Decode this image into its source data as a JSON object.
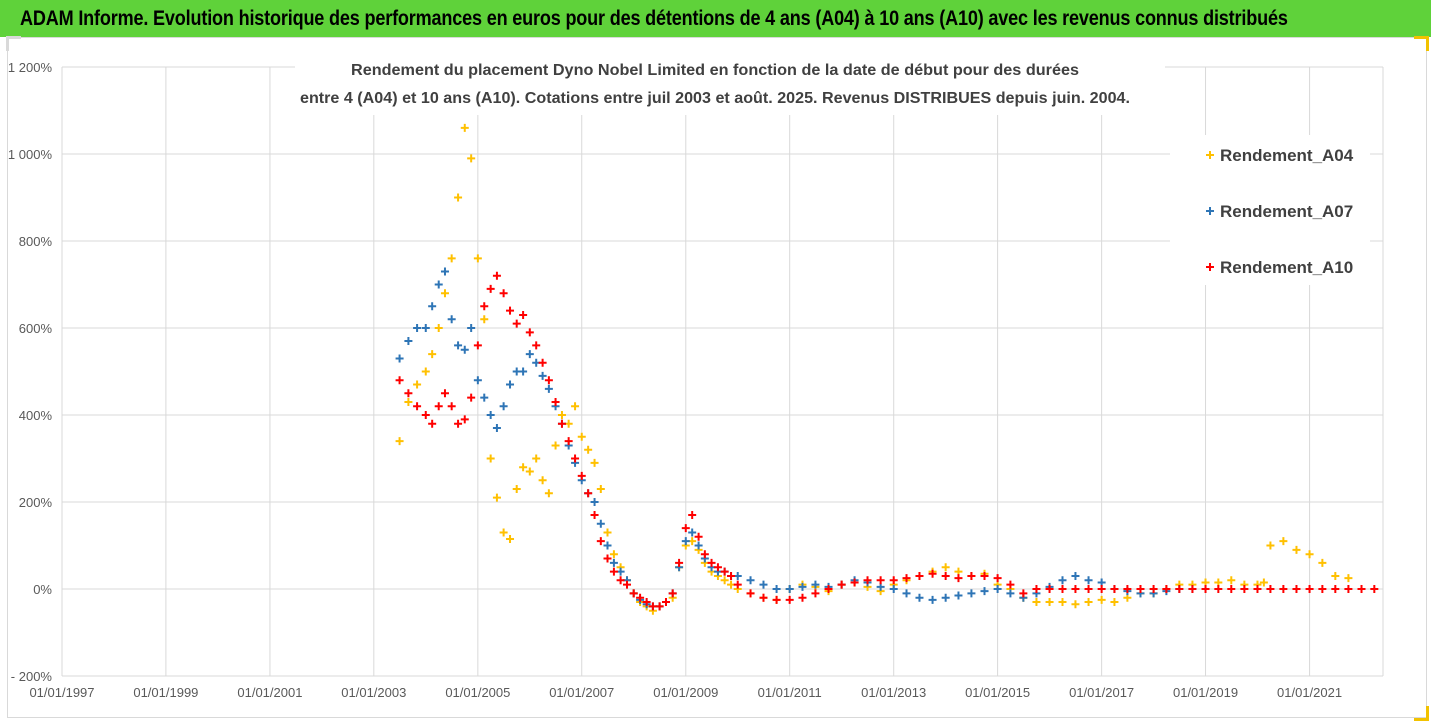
{
  "banner": {
    "title": "ADAM Informe. Evolution historique des performances en euros pour des détentions de 4 ans (A04) à 10 ans (A10) avec les revenus connus distribués"
  },
  "colors": {
    "banner_bg": "#5fd23a",
    "grid": "#d9d9d9",
    "axis_text": "#595959",
    "title_text": "#404040",
    "corner_accent": "#f2c200"
  },
  "chart_data": {
    "type": "scatter",
    "title_line1": "Rendement du placement Dyno Nobel Limited en fonction de la date de début pour des durées",
    "title_line2": "entre 4 (A04) et 10 ans (A10). Cotations entre juil 2003 et août. 2025. Revenus DISTRIBUES depuis juin. 2004.",
    "xlabel": "",
    "ylabel": "",
    "xlim": [
      "1997-01-01",
      "2022-06-01"
    ],
    "ylim": [
      -200,
      1200
    ],
    "y_unit": "%",
    "y_ticks": [
      -200,
      0,
      200,
      400,
      600,
      800,
      1000,
      1200
    ],
    "y_tick_labels": [
      "- 200%",
      "0%",
      "200%",
      "400%",
      "600%",
      "800%",
      "1 000%",
      "1 200%"
    ],
    "x_ticks": [
      "1997-01-01",
      "1999-01-01",
      "2001-01-01",
      "2003-01-01",
      "2005-01-01",
      "2007-01-01",
      "2009-01-01",
      "2011-01-01",
      "2013-01-01",
      "2015-01-01",
      "2017-01-01",
      "2019-01-01",
      "2021-01-01"
    ],
    "x_tick_labels": [
      "01/01/1997",
      "01/01/1999",
      "01/01/2001",
      "01/01/2003",
      "01/01/2005",
      "01/01/2007",
      "01/01/2009",
      "01/01/2011",
      "01/01/2013",
      "01/01/2015",
      "01/01/2017",
      "01/01/2019",
      "01/01/2021"
    ],
    "grid": true,
    "marker": "+",
    "legend_position": "right",
    "series": [
      {
        "name": "Rendement_A04",
        "color": "#ffc000",
        "x": [
          "2003-07-01",
          "2003-09-01",
          "2003-11-01",
          "2004-01-01",
          "2004-02-15",
          "2004-04-01",
          "2004-05-15",
          "2004-07-01",
          "2004-08-15",
          "2004-10-01",
          "2004-11-15",
          "2005-01-01",
          "2005-02-15",
          "2005-04-01",
          "2005-05-15",
          "2005-07-01",
          "2005-08-15",
          "2005-10-01",
          "2005-11-15",
          "2006-01-01",
          "2006-02-15",
          "2006-04-01",
          "2006-05-15",
          "2006-07-01",
          "2006-08-15",
          "2006-10-01",
          "2006-11-15",
          "2007-01-01",
          "2007-02-15",
          "2007-04-01",
          "2007-05-15",
          "2007-07-01",
          "2007-08-15",
          "2007-10-01",
          "2007-11-15",
          "2008-01-01",
          "2008-02-15",
          "2008-04-01",
          "2008-05-15",
          "2008-07-01",
          "2008-08-15",
          "2008-10-01",
          "2008-11-15",
          "2009-01-01",
          "2009-02-15",
          "2009-04-01",
          "2009-05-15",
          "2009-07-01",
          "2009-08-15",
          "2009-10-01",
          "2009-11-15",
          "2010-01-01",
          "2010-04-01",
          "2010-07-01",
          "2010-10-01",
          "2011-01-01",
          "2011-04-01",
          "2011-07-01",
          "2011-10-01",
          "2012-01-01",
          "2012-04-01",
          "2012-07-01",
          "2012-10-01",
          "2013-01-01",
          "2013-04-01",
          "2013-07-01",
          "2013-10-01",
          "2014-01-01",
          "2014-04-01",
          "2014-07-01",
          "2014-10-01",
          "2015-01-01",
          "2015-04-01",
          "2015-07-01",
          "2015-10-01",
          "2016-01-01",
          "2016-04-01",
          "2016-07-01",
          "2016-10-01",
          "2017-01-01",
          "2017-04-01",
          "2017-07-01",
          "2017-10-01",
          "2018-01-01",
          "2018-04-01",
          "2018-07-01",
          "2018-10-01",
          "2019-01-01",
          "2019-04-01",
          "2019-07-01",
          "2019-10-01",
          "2020-01-01",
          "2020-02-15",
          "2020-04-01",
          "2020-07-01",
          "2020-10-01",
          "2021-01-01",
          "2021-04-01",
          "2021-07-01",
          "2021-10-01"
        ],
        "y": [
          340,
          430,
          470,
          500,
          540,
          600,
          680,
          760,
          900,
          1060,
          990,
          760,
          620,
          300,
          210,
          130,
          115,
          230,
          280,
          270,
          300,
          250,
          220,
          330,
          400,
          380,
          420,
          350,
          320,
          290,
          230,
          130,
          80,
          50,
          20,
          -10,
          -30,
          -40,
          -50,
          -40,
          -30,
          -20,
          50,
          100,
          110,
          90,
          60,
          40,
          30,
          20,
          10,
          0,
          -10,
          -20,
          -25,
          0,
          10,
          5,
          -5,
          10,
          15,
          5,
          -5,
          10,
          20,
          30,
          40,
          50,
          40,
          30,
          35,
          10,
          0,
          -20,
          -30,
          -30,
          -30,
          -35,
          -30,
          -25,
          -30,
          -20,
          -10,
          -10,
          0,
          10,
          10,
          15,
          15,
          20,
          10,
          10,
          15,
          100,
          110,
          90,
          80,
          60,
          30,
          25
        ]
      },
      {
        "name": "Rendement_A07",
        "color": "#2e75b6",
        "x": [
          "2003-07-01",
          "2003-09-01",
          "2003-11-01",
          "2004-01-01",
          "2004-02-15",
          "2004-04-01",
          "2004-05-15",
          "2004-07-01",
          "2004-08-15",
          "2004-10-01",
          "2004-11-15",
          "2005-01-01",
          "2005-02-15",
          "2005-04-01",
          "2005-05-15",
          "2005-07-01",
          "2005-08-15",
          "2005-10-01",
          "2005-11-15",
          "2006-01-01",
          "2006-02-15",
          "2006-04-01",
          "2006-05-15",
          "2006-07-01",
          "2006-08-15",
          "2006-10-01",
          "2006-11-15",
          "2007-01-01",
          "2007-02-15",
          "2007-04-01",
          "2007-05-15",
          "2007-07-01",
          "2007-08-15",
          "2007-10-01",
          "2007-11-15",
          "2008-01-01",
          "2008-02-15",
          "2008-04-01",
          "2008-05-15",
          "2008-07-01",
          "2008-08-15",
          "2008-10-01",
          "2008-11-15",
          "2009-01-01",
          "2009-02-15",
          "2009-04-01",
          "2009-05-15",
          "2009-07-01",
          "2009-08-15",
          "2009-10-01",
          "2009-11-15",
          "2010-01-01",
          "2010-04-01",
          "2010-07-01",
          "2010-10-01",
          "2011-01-01",
          "2011-04-01",
          "2011-07-01",
          "2011-10-01",
          "2012-01-01",
          "2012-04-01",
          "2012-07-01",
          "2012-10-01",
          "2013-01-01",
          "2013-04-01",
          "2013-07-01",
          "2013-10-01",
          "2014-01-01",
          "2014-04-01",
          "2014-07-01",
          "2014-10-01",
          "2015-01-01",
          "2015-04-01",
          "2015-07-01",
          "2015-10-01",
          "2016-01-01",
          "2016-04-01",
          "2016-07-01",
          "2016-10-01",
          "2017-01-01",
          "2017-04-01",
          "2017-07-01",
          "2017-10-01",
          "2018-01-01",
          "2018-04-01",
          "2018-07-01",
          "2018-10-01"
        ],
        "y": [
          530,
          570,
          600,
          600,
          650,
          700,
          730,
          620,
          560,
          550,
          600,
          480,
          440,
          400,
          370,
          420,
          470,
          500,
          500,
          540,
          520,
          490,
          460,
          420,
          380,
          330,
          290,
          250,
          220,
          200,
          150,
          100,
          60,
          40,
          20,
          -10,
          -25,
          -35,
          -40,
          -40,
          -30,
          -10,
          50,
          110,
          130,
          100,
          70,
          50,
          40,
          40,
          30,
          30,
          20,
          10,
          0,
          0,
          5,
          10,
          5,
          10,
          20,
          15,
          5,
          0,
          -10,
          -20,
          -25,
          -20,
          -15,
          -10,
          -5,
          0,
          -10,
          -20,
          -10,
          5,
          20,
          30,
          20,
          15,
          0,
          -5,
          -10,
          -10,
          -5,
          0,
          0
        ]
      },
      {
        "name": "Rendement_A10",
        "color": "#ff0000",
        "x": [
          "2003-07-01",
          "2003-09-01",
          "2003-11-01",
          "2004-01-01",
          "2004-02-15",
          "2004-04-01",
          "2004-05-15",
          "2004-07-01",
          "2004-08-15",
          "2004-10-01",
          "2004-11-15",
          "2005-01-01",
          "2005-02-15",
          "2005-04-01",
          "2005-05-15",
          "2005-07-01",
          "2005-08-15",
          "2005-10-01",
          "2005-11-15",
          "2006-01-01",
          "2006-02-15",
          "2006-04-01",
          "2006-05-15",
          "2006-07-01",
          "2006-08-15",
          "2006-10-01",
          "2006-11-15",
          "2007-01-01",
          "2007-02-15",
          "2007-04-01",
          "2007-05-15",
          "2007-07-01",
          "2007-08-15",
          "2007-10-01",
          "2007-11-15",
          "2008-01-01",
          "2008-02-15",
          "2008-04-01",
          "2008-05-15",
          "2008-07-01",
          "2008-08-15",
          "2008-10-01",
          "2008-11-15",
          "2009-01-01",
          "2009-02-15",
          "2009-04-01",
          "2009-05-15",
          "2009-07-01",
          "2009-08-15",
          "2009-10-01",
          "2009-11-15",
          "2010-01-01",
          "2010-04-01",
          "2010-07-01",
          "2010-10-01",
          "2011-01-01",
          "2011-04-01",
          "2011-07-01",
          "2011-10-01",
          "2012-01-01",
          "2012-04-01",
          "2012-07-01",
          "2012-10-01",
          "2013-01-01",
          "2013-04-01",
          "2013-07-01",
          "2013-10-01",
          "2014-01-01",
          "2014-04-01",
          "2014-07-01",
          "2014-10-01",
          "2015-01-01",
          "2015-04-01",
          "2015-07-01",
          "2015-10-01",
          "2016-01-01",
          "2016-04-01",
          "2016-07-01",
          "2016-10-01",
          "2017-01-01",
          "2017-04-01",
          "2017-07-01",
          "2017-10-01",
          "2018-01-01",
          "2018-04-01",
          "2018-07-01",
          "2018-10-01",
          "2019-01-01",
          "2019-04-01",
          "2019-07-01",
          "2019-10-01",
          "2020-01-01",
          "2020-04-01",
          "2020-07-01",
          "2020-10-01",
          "2021-01-01",
          "2021-04-01",
          "2021-07-01",
          "2021-10-01",
          "2022-01-01",
          "2022-04-01"
        ],
        "y": [
          480,
          450,
          420,
          400,
          380,
          420,
          450,
          420,
          380,
          390,
          440,
          560,
          650,
          690,
          720,
          680,
          640,
          610,
          630,
          590,
          560,
          520,
          480,
          430,
          380,
          340,
          300,
          260,
          220,
          170,
          110,
          70,
          40,
          20,
          10,
          -10,
          -20,
          -30,
          -40,
          -40,
          -30,
          -10,
          60,
          140,
          170,
          120,
          80,
          60,
          50,
          40,
          30,
          10,
          -10,
          -20,
          -25,
          -25,
          -20,
          -10,
          0,
          10,
          15,
          20,
          20,
          20,
          25,
          30,
          35,
          30,
          25,
          30,
          30,
          25,
          10,
          -10,
          0,
          0,
          0,
          0,
          0,
          0,
          0,
          0,
          0,
          0,
          0,
          0,
          0,
          0,
          0,
          0,
          0,
          0,
          0,
          0,
          0,
          0,
          0,
          0,
          0,
          0,
          0
        ]
      }
    ]
  }
}
